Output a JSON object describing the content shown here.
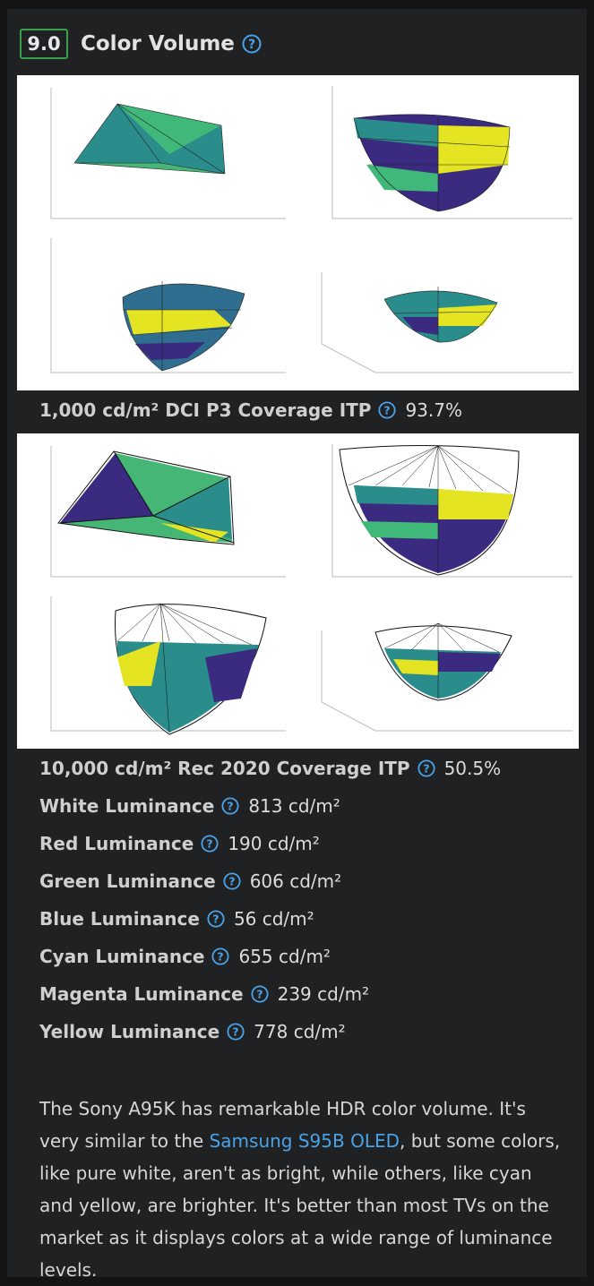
{
  "section": {
    "score": "9.0",
    "title": "Color Volume",
    "help_icon": "question-circle-icon",
    "accent_color": "#3aa14a",
    "link_color": "#4aa3e8"
  },
  "images": {
    "dci_p3": {
      "name": "dci-p3-color-volume-plots"
    },
    "rec2020": {
      "name": "rec2020-color-volume-plots"
    }
  },
  "metrics": {
    "dci_p3": {
      "label": "1,000 cd/m² DCI P3 Coverage ITP",
      "value": "93.7%"
    },
    "rec2020": {
      "label": "10,000 cd/m² Rec 2020 Coverage ITP",
      "value": "50.5%"
    },
    "white": {
      "label": "White Luminance",
      "value": "813 cd/m²"
    },
    "red": {
      "label": "Red Luminance",
      "value": "190 cd/m²"
    },
    "green": {
      "label": "Green Luminance",
      "value": "606 cd/m²"
    },
    "blue": {
      "label": "Blue Luminance",
      "value": "56 cd/m²"
    },
    "cyan": {
      "label": "Cyan Luminance",
      "value": "655 cd/m²"
    },
    "magenta": {
      "label": "Magenta Luminance",
      "value": "239 cd/m²"
    },
    "yellow": {
      "label": "Yellow Luminance",
      "value": "778 cd/m²"
    }
  },
  "description": {
    "before": "The Sony A95K has remarkable HDR color volume. It's very similar to the ",
    "link": "Samsung S95B OLED",
    "after": ", but some colors, like pure white, aren't as bright, while others, like cyan and yellow, are brighter. It's better than most TVs on the market as it displays colors at a wide range of luminance levels."
  }
}
